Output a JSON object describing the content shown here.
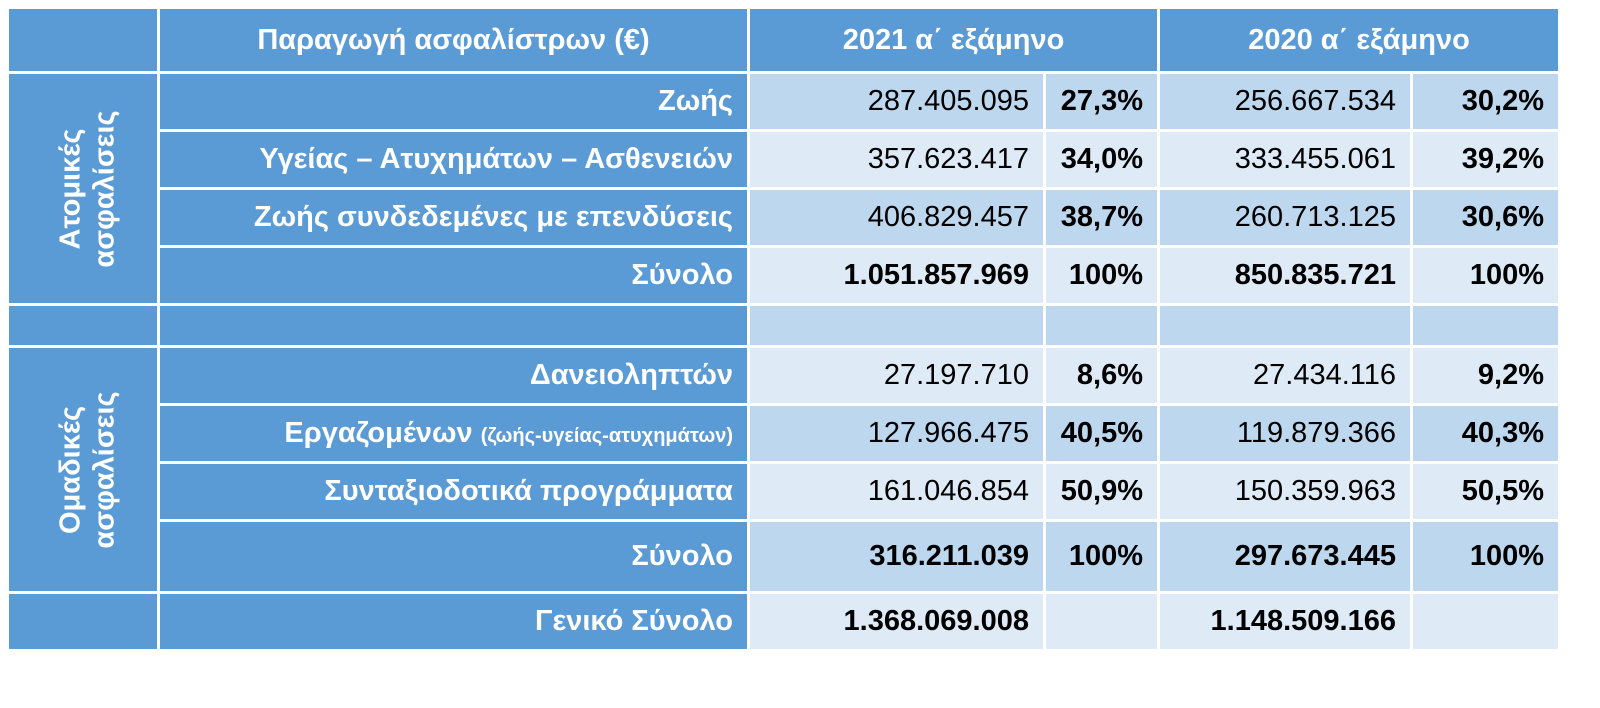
{
  "header": {
    "title": "Παραγωγή ασφαλίστρων   (€)",
    "col_2021": "2021  α΄ εξάμηνο",
    "col_2020": "2020  α΄ εξάμηνο"
  },
  "individual": {
    "group_label_1": "Ατομικές",
    "group_label_2": "ασφαλίσεις",
    "rows": [
      {
        "label": "Ζωής",
        "v2021": "287.405.095",
        "p2021": "27,3%",
        "v2020": "256.667.534",
        "p2020": "30,2%"
      },
      {
        "label": "Υγείας – Ατυχημάτων – Ασθενειών",
        "v2021": "357.623.417",
        "p2021": "34,0%",
        "v2020": "333.455.061",
        "p2020": "39,2%"
      },
      {
        "label": "Ζωής συνδεδεμένες με επενδύσεις",
        "v2021": "406.829.457",
        "p2021": "38,7%",
        "v2020": "260.713.125",
        "p2020": "30,6%"
      },
      {
        "label": "Σύνολο",
        "v2021": "1.051.857.969",
        "p2021": "100%",
        "v2020": "850.835.721",
        "p2020": "100%"
      }
    ]
  },
  "group": {
    "group_label_1": "Ομαδικές",
    "group_label_2": "ασφαλίσεις",
    "rows": [
      {
        "label": "Δανειοληπτών",
        "v2021": "27.197.710",
        "p2021": "8,6%",
        "v2020": "27.434.116",
        "p2020": "9,2%"
      },
      {
        "label": "Εργαζομένων",
        "label_note": "(ζωής-υγείας-ατυχημάτων)",
        "v2021": "127.966.475",
        "p2021": "40,5%",
        "v2020": "119.879.366",
        "p2020": "40,3%"
      },
      {
        "label": "Συνταξιοδοτικά  προγράμματα",
        "v2021": "161.046.854",
        "p2021": "50,9%",
        "v2020": "150.359.963",
        "p2020": "50,5%"
      },
      {
        "label": "Σύνολο",
        "v2021": "316.211.039",
        "p2021": "100%",
        "v2020": "297.673.445",
        "p2020": "100%"
      }
    ]
  },
  "grand_total": {
    "label": "Γενικό  Σύνολο",
    "v2021": "1.368.069.008",
    "v2020": "1.148.509.166"
  },
  "colors": {
    "header_blue": "#5b9bd5",
    "cell_dark": "#bdd7ee",
    "cell_light": "#deebf7"
  }
}
